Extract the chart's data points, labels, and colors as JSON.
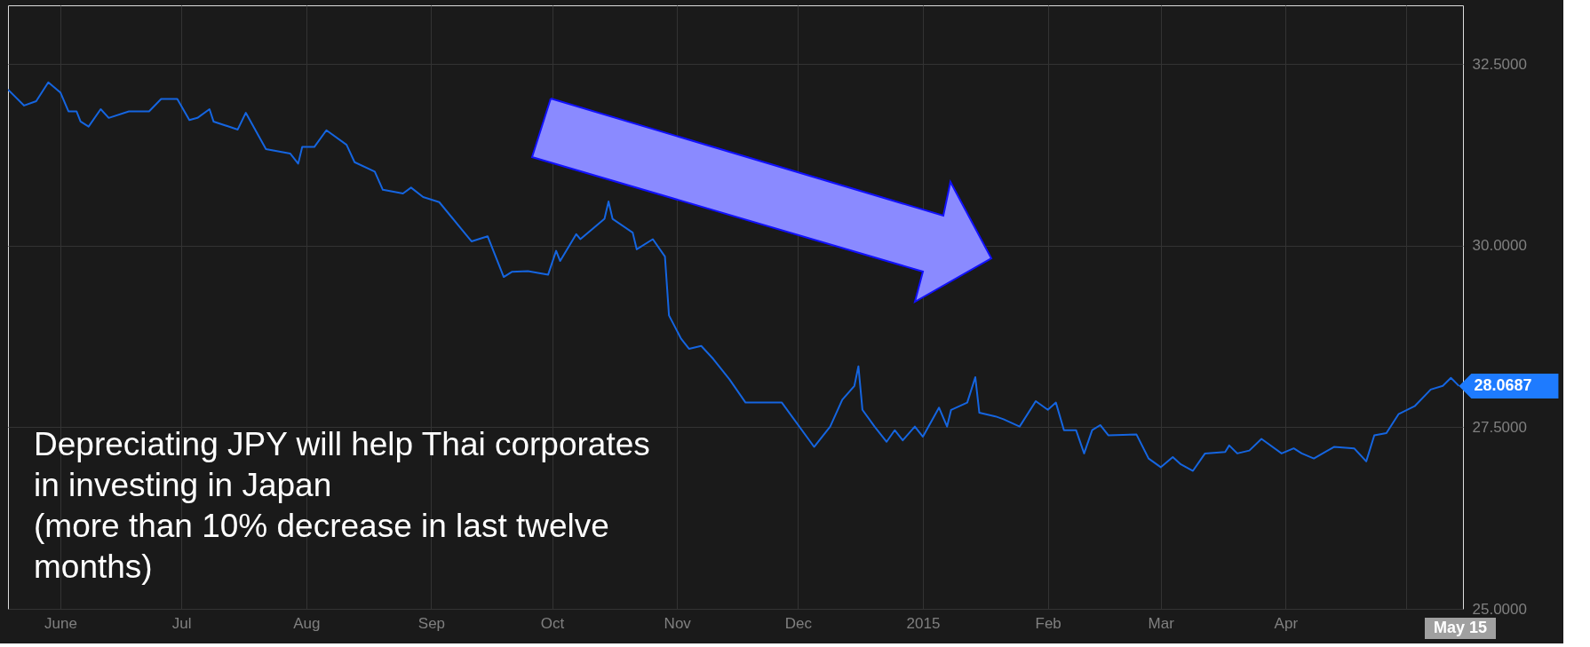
{
  "chart_data": {
    "type": "line",
    "x": [
      "2014-05-19",
      "2014-05-23",
      "2014-05-26",
      "2014-05-29",
      "2014-06-01",
      "2014-06-03",
      "2014-06-05",
      "2014-06-06",
      "2014-06-08",
      "2014-06-11",
      "2014-06-13",
      "2014-06-18",
      "2014-06-23",
      "2014-06-26",
      "2014-06-30",
      "2014-07-03",
      "2014-07-05",
      "2014-07-08",
      "2014-07-09",
      "2014-07-15",
      "2014-07-17",
      "2014-07-22",
      "2014-07-28",
      "2014-07-30",
      "2014-07-31",
      "2014-08-03",
      "2014-08-06",
      "2014-08-11",
      "2014-08-13",
      "2014-08-18",
      "2014-08-20",
      "2014-08-25",
      "2014-08-27",
      "2014-08-30",
      "2014-09-03",
      "2014-09-11",
      "2014-09-15",
      "2014-09-19",
      "2014-09-21",
      "2014-09-25",
      "2014-09-30",
      "2014-10-02",
      "2014-10-03",
      "2014-10-07",
      "2014-10-08",
      "2014-10-14",
      "2014-10-15",
      "2014-10-16",
      "2014-10-21",
      "2014-10-22",
      "2014-10-26",
      "2014-10-29",
      "2014-10-30",
      "2014-11-02",
      "2014-11-04",
      "2014-11-07",
      "2014-11-10",
      "2014-11-14",
      "2014-11-18",
      "2014-11-22",
      "2014-11-27",
      "2014-12-05",
      "2014-12-09",
      "2014-12-12",
      "2014-12-15",
      "2014-12-16",
      "2014-12-17",
      "2014-12-20",
      "2014-12-23",
      "2014-12-25",
      "2014-12-27",
      "2014-12-30",
      "2015-01-01",
      "2015-01-05",
      "2015-01-07",
      "2015-01-08",
      "2015-01-12",
      "2015-01-14",
      "2015-01-15",
      "2015-01-19",
      "2015-01-21",
      "2015-01-25",
      "2015-01-29",
      "2015-02-01",
      "2015-02-03",
      "2015-02-05",
      "2015-02-08",
      "2015-02-10",
      "2015-02-12",
      "2015-02-14",
      "2015-02-16",
      "2015-02-23",
      "2015-02-26",
      "2015-03-01",
      "2015-03-04",
      "2015-03-06",
      "2015-03-09",
      "2015-03-12",
      "2015-03-17",
      "2015-03-18",
      "2015-03-20",
      "2015-03-23",
      "2015-03-26",
      "2015-03-31",
      "2015-04-03",
      "2015-04-05",
      "2015-04-08",
      "2015-04-13",
      "2015-04-18",
      "2015-04-21",
      "2015-04-23",
      "2015-04-26",
      "2015-04-29",
      "2015-05-03",
      "2015-05-07",
      "2015-05-10",
      "2015-05-12",
      "2015-05-14"
    ],
    "series": [
      {
        "color": "#1565e0",
        "values": [
          32.15,
          31.93,
          31.99,
          32.25,
          32.11,
          31.85,
          31.85,
          31.71,
          31.64,
          31.88,
          31.76,
          31.85,
          31.85,
          32.02,
          32.02,
          31.73,
          31.76,
          31.88,
          31.71,
          31.6,
          31.83,
          31.33,
          31.27,
          31.13,
          31.36,
          31.36,
          31.59,
          31.39,
          31.15,
          31.02,
          30.77,
          30.72,
          30.8,
          30.67,
          30.6,
          30.06,
          30.13,
          29.57,
          29.64,
          29.65,
          29.6,
          29.93,
          29.79,
          30.16,
          30.09,
          30.37,
          30.61,
          30.37,
          30.18,
          29.95,
          30.09,
          29.85,
          29.04,
          28.72,
          28.58,
          28.62,
          28.44,
          28.16,
          27.84,
          27.84,
          27.84,
          27.23,
          27.51,
          27.88,
          28.07,
          28.34,
          27.74,
          27.51,
          27.3,
          27.46,
          27.32,
          27.51,
          27.37,
          27.77,
          27.51,
          27.74,
          27.84,
          28.19,
          27.7,
          27.65,
          27.61,
          27.51,
          27.86,
          27.74,
          27.84,
          27.46,
          27.46,
          27.14,
          27.46,
          27.53,
          27.39,
          27.4,
          27.07,
          26.95,
          27.09,
          26.99,
          26.9,
          27.14,
          27.16,
          27.25,
          27.14,
          27.18,
          27.34,
          27.14,
          27.21,
          27.14,
          27.07,
          27.23,
          27.21,
          27.03,
          27.39,
          27.42,
          27.68,
          27.79,
          28.02,
          28.07,
          28.18,
          28.0687
        ]
      }
    ],
    "xlim": [
      "2014-05-19",
      "2015-05-15"
    ],
    "xticks": [
      {
        "value": "2014-06-01",
        "label": "June"
      },
      {
        "value": "2014-07-01",
        "label": "Jul"
      },
      {
        "value": "2014-08-01",
        "label": "Aug"
      },
      {
        "value": "2014-09-01",
        "label": "Sep"
      },
      {
        "value": "2014-10-01",
        "label": "Oct"
      },
      {
        "value": "2014-11-01",
        "label": "Nov"
      },
      {
        "value": "2014-12-01",
        "label": "Dec"
      },
      {
        "value": "2015-01-01",
        "label": "2015"
      },
      {
        "value": "2015-02-01",
        "label": "Feb"
      },
      {
        "value": "2015-03-01",
        "label": "Mar"
      },
      {
        "value": "2015-04-01",
        "label": "Apr"
      },
      {
        "value": "2015-05-01",
        "label": null
      }
    ],
    "ylim": [
      25,
      33.31
    ],
    "yticks": [
      {
        "value": 25,
        "label": "25.0000"
      },
      {
        "value": 27.5,
        "label": "27.5000"
      },
      {
        "value": 30,
        "label": "30.0000"
      },
      {
        "value": 32.5,
        "label": "32.5000"
      }
    ],
    "grid": true,
    "annotations": [
      "Depreciating JPY will help Thai corporates\nin investing in Japan\n(more than 10% decrease in last twelve\nmonths)",
      {
        "text": "28.0687",
        "x": "2015-05-14",
        "y": 28.0687
      },
      "May 15"
    ]
  }
}
